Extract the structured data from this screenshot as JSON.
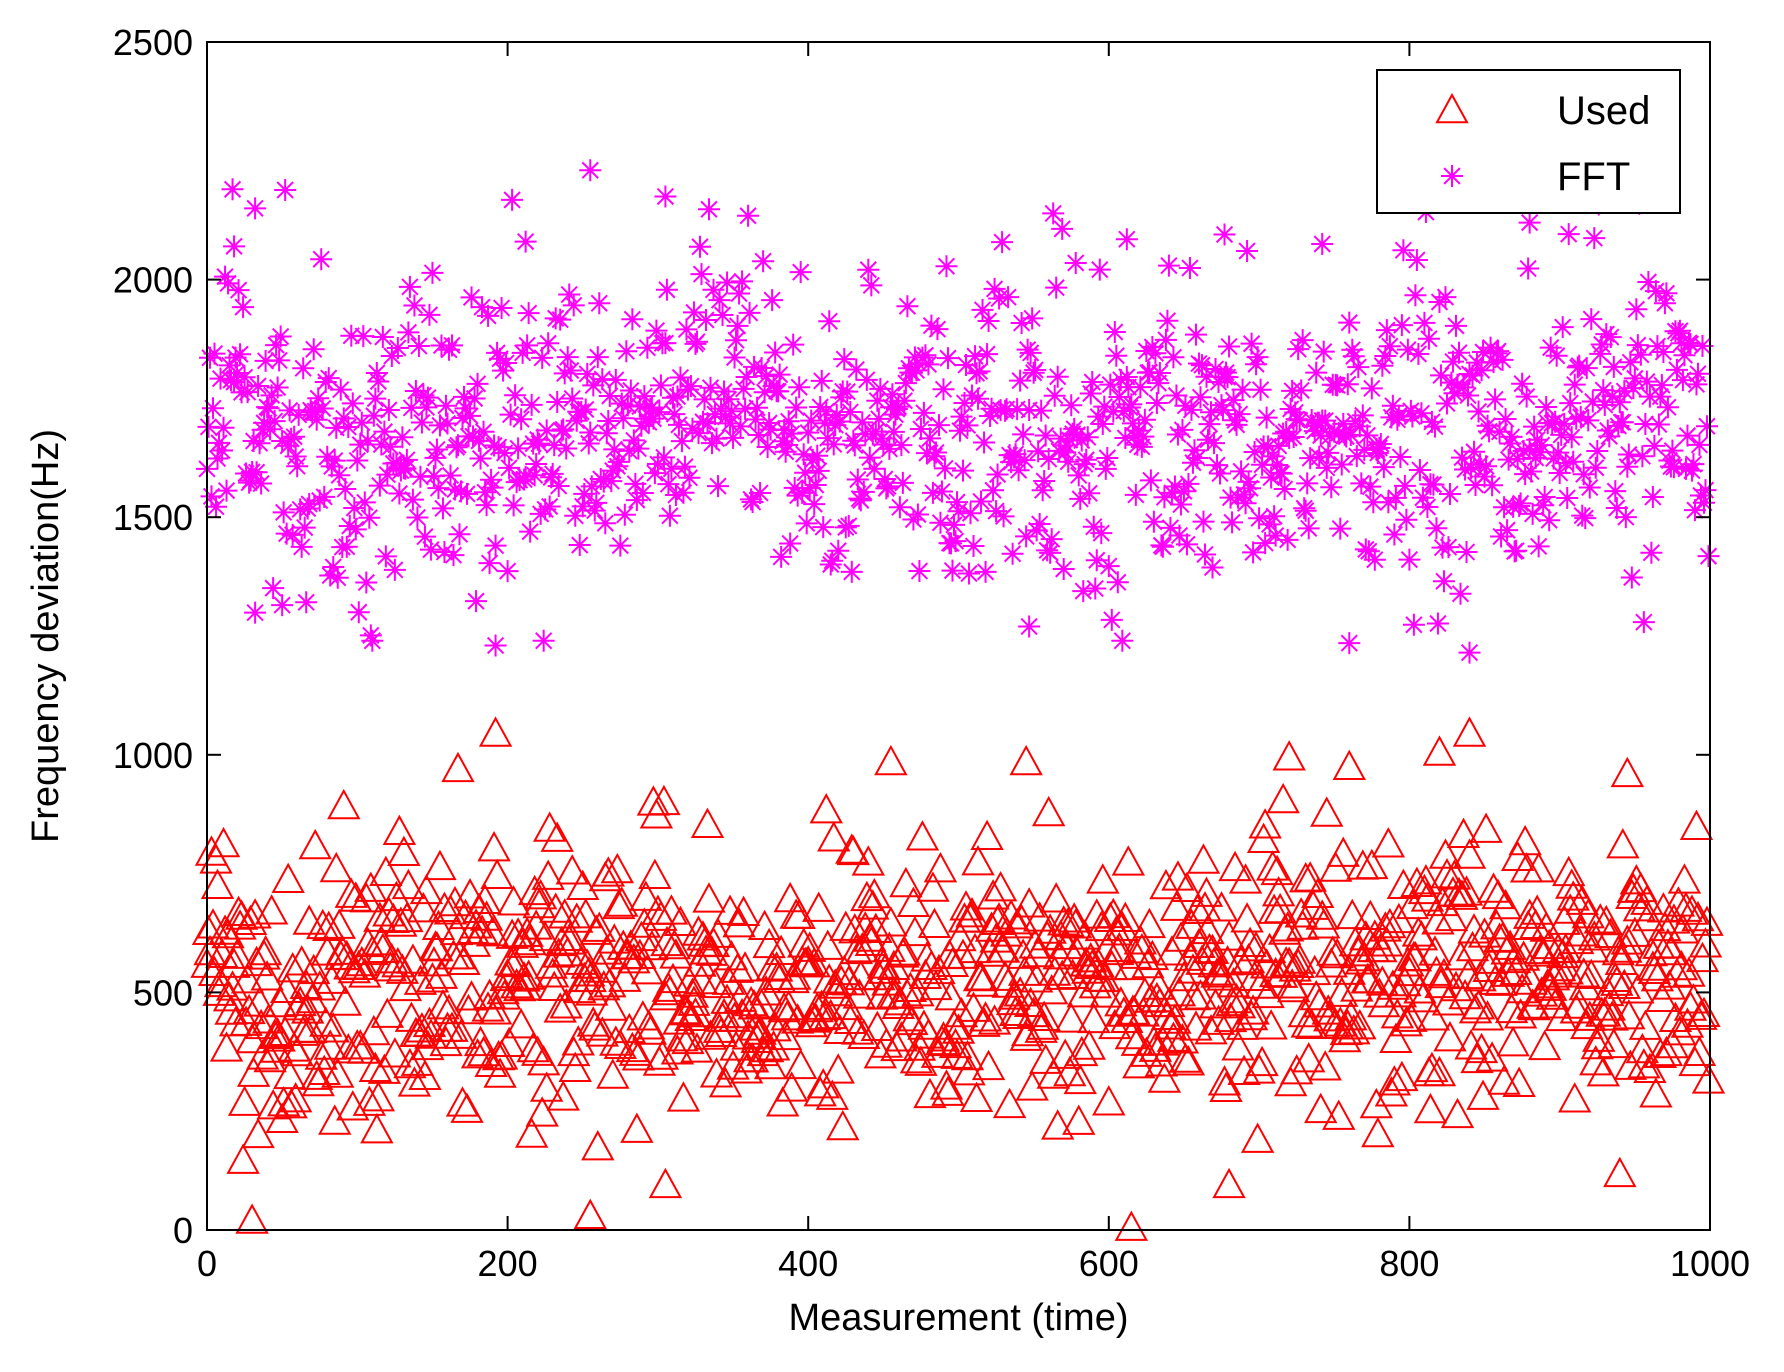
{
  "chart_data": {
    "type": "scatter",
    "xlabel": "Measurement (time)",
    "ylabel": "Frequency deviation(Hz)",
    "xlim": [
      0,
      1000
    ],
    "ylim": [
      0,
      2500
    ],
    "x_ticks": [
      0,
      200,
      400,
      600,
      800,
      1000
    ],
    "y_ticks": [
      0,
      500,
      1000,
      1500,
      2000,
      2500
    ],
    "grid": false,
    "legend_position": "top-right",
    "n_points": 1000,
    "series": [
      {
        "name": "Used",
        "marker": "triangle-open",
        "color": "#ff0000",
        "distribution": {
          "mean": 530,
          "spread": 150,
          "min": 0,
          "max": 1050
        },
        "highlighted_values": [
          [
            30,
            20
          ],
          [
            192,
            1045
          ],
          [
            255,
            30
          ],
          [
            305,
            95
          ],
          [
            455,
            985
          ],
          [
            545,
            985
          ],
          [
            615,
            5
          ],
          [
            680,
            95
          ],
          [
            720,
            995
          ],
          [
            760,
            975
          ],
          [
            820,
            1005
          ],
          [
            840,
            1045
          ],
          [
            945,
            960
          ]
        ]
      },
      {
        "name": "FFT",
        "marker": "asterisk",
        "color": "#ff00ff",
        "distribution": {
          "mean": 1680,
          "spread": 170,
          "min": 1200,
          "max": 2230
        },
        "highlighted_values": [
          [
            32,
            2150
          ],
          [
            18,
            2070
          ],
          [
            255,
            2230
          ],
          [
            305,
            2175
          ],
          [
            212,
            2080
          ],
          [
            612,
            2085
          ],
          [
            677,
            2095
          ],
          [
            742,
            2075
          ],
          [
            880,
            2120
          ],
          [
            192,
            1230
          ],
          [
            547,
            1270
          ],
          [
            760,
            1235
          ],
          [
            840,
            1215
          ],
          [
            50,
            1315
          ]
        ]
      }
    ]
  }
}
